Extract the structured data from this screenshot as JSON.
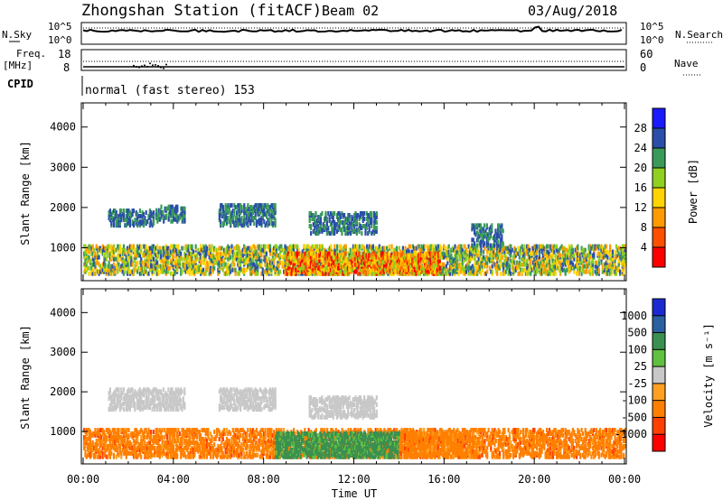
{
  "header": {
    "station": "Zhongshan Station (fitACF)",
    "beam": "Beam 02",
    "date": "03/Aug/2018"
  },
  "strips": {
    "nsky_label": "N.Sky",
    "nsky_ticks": [
      "10^5",
      "10^0"
    ],
    "nsearch_label": "N.Search",
    "nsearch_ticks": [
      "10^5",
      "10^0"
    ],
    "freq_label_top": "Freq.",
    "freq_label_unit": "[MHz]",
    "freq_ticks": [
      "18",
      "8"
    ],
    "nave_label": "Nave",
    "nave_ticks": [
      "60",
      "0"
    ],
    "cpid_label": "CPID",
    "cpid_value": "normal (fast stereo) 153"
  },
  "chart_data": [
    {
      "type": "heatmap",
      "title": "",
      "xlabel": "Time UT",
      "ylabel": "Slant Range [km]",
      "xticks": [
        "00:00",
        "04:00",
        "08:00",
        "12:00",
        "16:00",
        "20:00",
        "00:00"
      ],
      "xlim_hours": [
        0,
        24
      ],
      "ylim_km": [
        180,
        4600
      ],
      "yticks": [
        1000,
        2000,
        3000,
        4000
      ],
      "colorbar": {
        "label": "Power [dB]",
        "ticks": [
          "4",
          "8",
          "12",
          "16",
          "20",
          "24",
          "28"
        ],
        "colors": [
          "#1a1aff",
          "#2a4fa8",
          "#3a9a5a",
          "#8fd020",
          "#ffd400",
          "#ff9a00",
          "#ff5000",
          "#ff0000"
        ]
      },
      "bands": [
        {
          "t0": 0.0,
          "t1": 24.0,
          "r0": 300,
          "r1": 1000,
          "class": "mixed-low"
        },
        {
          "t0": 1.1,
          "t1": 3.1,
          "r0": 1500,
          "r1": 1900,
          "class": "weak"
        },
        {
          "t0": 3.2,
          "t1": 4.5,
          "r0": 1600,
          "r1": 2000,
          "class": "weak"
        },
        {
          "t0": 6.0,
          "t1": 8.5,
          "r0": 1500,
          "r1": 2000,
          "class": "weak"
        },
        {
          "t0": 10.0,
          "t1": 13.0,
          "r0": 1300,
          "r1": 1800,
          "class": "weak"
        },
        {
          "t0": 17.2,
          "t1": 18.6,
          "r0": 1000,
          "r1": 1500,
          "class": "weak"
        },
        {
          "t0": 9.0,
          "t1": 15.8,
          "r0": 300,
          "r1": 800,
          "class": "strong"
        }
      ]
    },
    {
      "type": "heatmap",
      "title": "",
      "xlabel": "Time UT",
      "ylabel": "Slant Range [km]",
      "xticks": [
        "00:00",
        "04:00",
        "08:00",
        "12:00",
        "16:00",
        "20:00",
        "00:00"
      ],
      "xlim_hours": [
        0,
        24
      ],
      "ylim_km": [
        180,
        4600
      ],
      "yticks": [
        1000,
        2000,
        3000,
        4000
      ],
      "colorbar": {
        "label": "Velocity [m s⁻¹]",
        "ticks": [
          "1000",
          "500",
          "100",
          "25",
          "-25",
          "-100",
          "-500",
          "-1000"
        ],
        "colors": [
          "#1a2ad0",
          "#2a60a0",
          "#3a9050",
          "#60c040",
          "#c8c8c8",
          "#ffa020",
          "#ff8000",
          "#ff4000",
          "#ff0000"
        ]
      },
      "bands": [
        {
          "t0": 0.0,
          "t1": 24.0,
          "r0": 300,
          "r1": 1000,
          "class": "away"
        },
        {
          "t0": 1.1,
          "t1": 4.5,
          "r0": 1500,
          "r1": 2000,
          "class": "ground"
        },
        {
          "t0": 6.0,
          "t1": 8.5,
          "r0": 1500,
          "r1": 2000,
          "class": "ground"
        },
        {
          "t0": 10.0,
          "t1": 13.0,
          "r0": 1300,
          "r1": 1800,
          "class": "ground"
        },
        {
          "t0": 8.5,
          "t1": 14.0,
          "r0": 300,
          "r1": 900,
          "class": "toward"
        },
        {
          "t0": 14.0,
          "t1": 17.5,
          "r0": 300,
          "r1": 900,
          "class": "away"
        }
      ]
    }
  ]
}
